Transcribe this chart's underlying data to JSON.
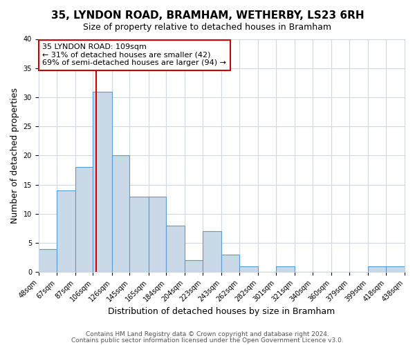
{
  "title": "35, LYNDON ROAD, BRAMHAM, WETHERBY, LS23 6RH",
  "subtitle": "Size of property relative to detached houses in Bramham",
  "xlabel": "Distribution of detached houses by size in Bramham",
  "ylabel": "Number of detached properties",
  "bar_edges": [
    48,
    67,
    87,
    106,
    126,
    145,
    165,
    184,
    204,
    223,
    243,
    262,
    282,
    301,
    321,
    340,
    360,
    379,
    399,
    418,
    438
  ],
  "bar_heights": [
    4,
    14,
    18,
    31,
    20,
    13,
    13,
    8,
    2,
    7,
    3,
    1,
    0,
    1,
    0,
    0,
    0,
    0,
    1,
    1
  ],
  "bar_color": "#c9d9e8",
  "bar_edgecolor": "#5b9bd5",
  "reference_line_x": 109,
  "reference_line_color": "#cc0000",
  "ylim": [
    0,
    40
  ],
  "yticks": [
    0,
    5,
    10,
    15,
    20,
    25,
    30,
    35,
    40
  ],
  "annotation_line1": "35 LYNDON ROAD: 109sqm",
  "annotation_line2": "← 31% of detached houses are smaller (42)",
  "annotation_line3": "69% of semi-detached houses are larger (94) →",
  "annotation_box_edgecolor": "#cc0000",
  "footer_line1": "Contains HM Land Registry data © Crown copyright and database right 2024.",
  "footer_line2": "Contains public sector information licensed under the Open Government Licence v3.0.",
  "background_color": "#ffffff",
  "grid_color": "#d0d8e4",
  "title_fontsize": 11,
  "subtitle_fontsize": 9,
  "ylabel_fontsize": 9,
  "xlabel_fontsize": 9,
  "tick_fontsize": 7,
  "footer_fontsize": 6.5,
  "annotation_fontsize": 8
}
